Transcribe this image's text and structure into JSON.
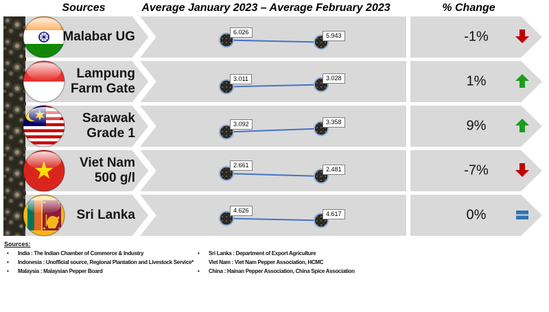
{
  "header": {
    "sources_label": "Sources",
    "period_label": "Average January 2023 – Average February 2023",
    "change_label": "% Change"
  },
  "chart_data": {
    "type": "line",
    "title": "Average January 2023 – Average February 2023",
    "categories": [
      "Malabar UG",
      "Lampung Farm Gate",
      "Sarawak Grade 1",
      "Viet Nam 500 g/l",
      "Sri Lanka"
    ],
    "series": [
      {
        "name": "Average January 2023",
        "values": [
          6.026,
          3.011,
          3.092,
          2.661,
          4.626
        ]
      },
      {
        "name": "Average February 2023",
        "values": [
          5.943,
          3.028,
          3.358,
          2.481,
          4.617
        ]
      }
    ],
    "pct_change": [
      "-1%",
      "1%",
      "9%",
      "-7%",
      "0%"
    ],
    "legend_position": "none",
    "grid": false
  },
  "colors": {
    "band": "#d9d9d9",
    "line": "#4472c4",
    "point_ring": "#8faadc",
    "up": "#1e9c1e",
    "down": "#c00000",
    "equal": "#2e74b5"
  },
  "rows": [
    {
      "flag": "india",
      "label_lines": [
        "Malabar UG"
      ],
      "jan": "6.026",
      "feb": "5.943",
      "change": "-1%",
      "direction": "down"
    },
    {
      "flag": "indonesia",
      "label_lines": [
        "Lampung",
        "Farm Gate"
      ],
      "jan": "3.011",
      "feb": "3.028",
      "change": "1%",
      "direction": "up"
    },
    {
      "flag": "malaysia",
      "label_lines": [
        "Sarawak",
        "Grade 1"
      ],
      "jan": "3.092",
      "feb": "3.358",
      "change": "9%",
      "direction": "up"
    },
    {
      "flag": "vietnam",
      "label_lines": [
        "Viet Nam",
        "500 g/l"
      ],
      "jan": "2.661",
      "feb": "2.481",
      "change": "-7%",
      "direction": "down"
    },
    {
      "flag": "srilanka",
      "label_lines": [
        "Sri Lanka"
      ],
      "jan": "4.626",
      "feb": "4.617",
      "change": "0%",
      "direction": "equal"
    }
  ],
  "footer": {
    "title": "Sources:",
    "left": [
      {
        "bullet": true,
        "text": "India : The Indian Chamber of Commerce & Industry"
      },
      {
        "bullet": true,
        "text": "Indonesia : Unofficial source, Regional Plantation and Livestock Service*"
      },
      {
        "bullet": true,
        "text": "Malaysia : Malaysian Pepper Board"
      }
    ],
    "right": [
      {
        "bullet": true,
        "text": "Sri Lanka : Department of Export Agriculture"
      },
      {
        "bullet": false,
        "text": "Viet Nam : Viet Nam Pepper Association, HCMC"
      },
      {
        "bullet": true,
        "text": "China : Hainan Pepper Association, China Spice Association"
      }
    ]
  }
}
